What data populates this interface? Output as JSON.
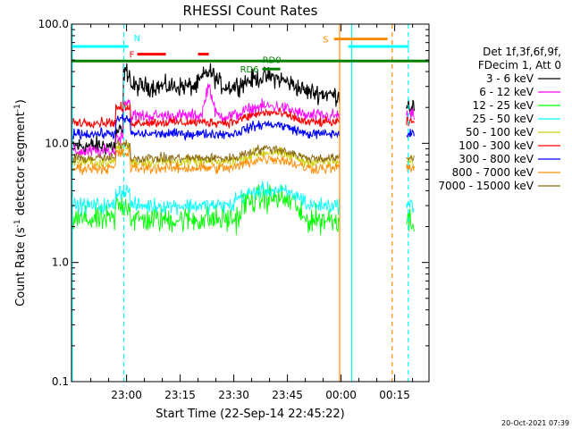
{
  "chart_data": {
    "type": "line",
    "title": "RHESSI Count Rates",
    "xlabel": "Start Time (22-Sep-14 22:45:22)",
    "ylabel_prefix": "Count Rate (s",
    "ylabel_sup1": "-1",
    "ylabel_mid": " detector segment",
    "ylabel_sup2": "-1",
    "ylabel_suffix": ")",
    "yscale": "log",
    "ylim": [
      0.1,
      100.0
    ],
    "yticks": [
      "0.1",
      "1.0",
      "10.0",
      "100.0"
    ],
    "xlim_minutes": [
      -15.4,
      34.6
    ],
    "xticks": [
      {
        "label": "23:00",
        "t": 0
      },
      {
        "label": "23:15",
        "t": 15
      },
      {
        "label": "23:30",
        "t": 30
      },
      {
        "label": "23:45",
        "t": 45
      },
      {
        "label": "00:00",
        "t": 60
      },
      {
        "label": "00:15",
        "t": 75
      }
    ],
    "segments_minutes": [
      [
        -15.4,
        59.8
      ],
      [
        78.3,
        80.5
      ]
    ],
    "legend_header": [
      "Det 1f,3f,6f,9f,",
      "FDecim 1, Att 0"
    ],
    "series": [
      {
        "name": "3 - 6 keV",
        "color": "#000000",
        "level": 30,
        "noise": 0.1
      },
      {
        "name": "6 - 12 keV",
        "color": "#ff00ff",
        "level": 17,
        "noise": 0.07
      },
      {
        "name": "12 - 25 keV",
        "color": "#00ff00",
        "level": 2.3,
        "noise": 0.14
      },
      {
        "name": "25 - 50 keV",
        "color": "#00ffff",
        "level": 3.0,
        "noise": 0.08
      },
      {
        "name": "50 - 100 keV",
        "color": "#cccc00",
        "level": 7.0,
        "noise": 0.06
      },
      {
        "name": "100 - 300 keV",
        "color": "#ff0000",
        "level": 15,
        "noise": 0.05
      },
      {
        "name": "300 - 800 keV",
        "color": "#0000ff",
        "level": 12,
        "noise": 0.05
      },
      {
        "name": "800 - 7000 keV",
        "color": "#ff8c00",
        "level": 6.2,
        "noise": 0.06
      },
      {
        "name": "7000 - 15000 keV",
        "color": "#8b6914",
        "level": 7.5,
        "noise": 0.05
      }
    ],
    "flags": [
      {
        "label": "N",
        "color": "#00ffff",
        "value": 65,
        "start": -999,
        "end": 0.5
      },
      {
        "label": "F",
        "color": "#ff0000",
        "value": 56,
        "start": 3,
        "end": 11
      },
      {
        "label": "",
        "color": "#ff0000",
        "value": 56,
        "start": 20,
        "end": 23
      },
      {
        "label": "",
        "color": "#00ffff",
        "value": 65,
        "start": 62,
        "end": 79
      },
      {
        "label": "S",
        "color": "#ff8c00",
        "value": 75,
        "start": 58,
        "end": 73
      },
      {
        "label": "RD0",
        "color": "#008000",
        "value": 49,
        "start": -999,
        "end": 999
      },
      {
        "label": "RD6",
        "color": "#008000",
        "value": 42,
        "start": 38,
        "end": 43
      }
    ],
    "vlines": [
      {
        "t": -0.8,
        "color": "#00ffff",
        "style": "dashed"
      },
      {
        "t": 78.8,
        "color": "#00ffff",
        "style": "dashed"
      },
      {
        "t": -15.2,
        "color": "#00ffff",
        "style": "solid"
      },
      {
        "t": 63,
        "color": "#00ffff",
        "style": "solid"
      },
      {
        "t": 59.6,
        "color": "#ff8c00",
        "style": "solid"
      },
      {
        "t": 74.3,
        "color": "#ff8c00",
        "style": "dashed"
      }
    ],
    "timestamp": "20-Oct-2021 07:39"
  }
}
